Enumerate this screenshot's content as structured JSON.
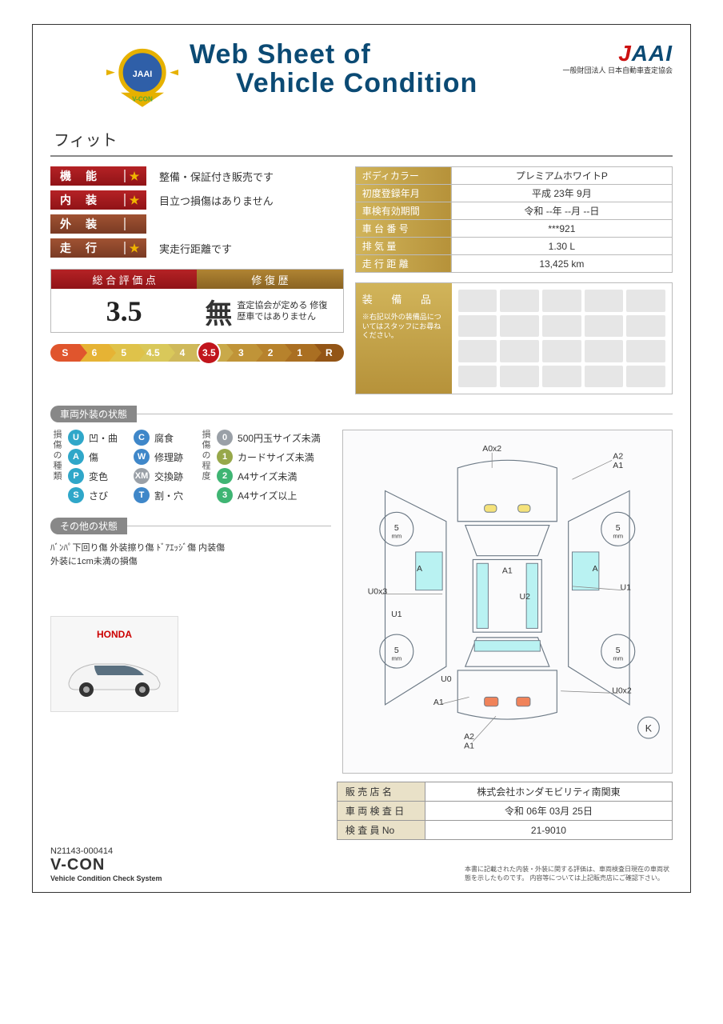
{
  "header": {
    "title_line1": "Web Sheet of",
    "title_line2": "Vehicle Condition",
    "badge_text": "V-CON",
    "jaai_logo": "JAAI",
    "jaai_sub": "一般財団法人 日本自動車査定協会"
  },
  "car_name": "フィット",
  "ratings": [
    {
      "label": "機能",
      "chip_color": "chip-red",
      "star": true,
      "desc": "整備・保証付き販売です"
    },
    {
      "label": "内装",
      "chip_color": "chip-red",
      "star": true,
      "desc": "目立つ損傷はありません"
    },
    {
      "label": "外装",
      "chip_color": "chip-brown",
      "star": false,
      "desc": ""
    },
    {
      "label": "走行",
      "chip_color": "chip-brown",
      "star": true,
      "desc": "実走行距離です"
    }
  ],
  "score": {
    "head_left": "総 合 評 価 点",
    "head_right": "修 復 歴",
    "value": "3.5",
    "mu": "無",
    "mu_desc": "査定協会が定める\n修復歴車ではありません"
  },
  "scale": {
    "items": [
      "S",
      "6",
      "5",
      "4.5",
      "4",
      "3.5",
      "3",
      "2",
      "1",
      "R"
    ],
    "mark_value": "3.5",
    "mark_index": 5
  },
  "spec": [
    {
      "label": "ボディカラー",
      "value": "プレミアムホワイトP"
    },
    {
      "label": "初度登録年月",
      "value": "平成 23年 9月"
    },
    {
      "label": "車検有効期間",
      "value": "令和 --年 --月 --日"
    },
    {
      "label": "車 台 番 号",
      "value": "***921"
    },
    {
      "label": "排  気  量",
      "value": "1.30 L"
    },
    {
      "label": "走 行 距 離",
      "value": "13,425 km"
    }
  ],
  "equip": {
    "title": "装 備 品",
    "note": "※右記以外の装備品についてはスタッフにお尋ねください。",
    "grid_cells": 20
  },
  "section_exterior": "車両外装の状態",
  "legend_types": {
    "heading": "損傷の種類",
    "rows": [
      {
        "code": "U",
        "color": "ball-teal",
        "label": "凹・曲"
      },
      {
        "code": "A",
        "color": "ball-teal",
        "label": "傷"
      },
      {
        "code": "P",
        "color": "ball-teal",
        "label": "変色"
      },
      {
        "code": "S",
        "color": "ball-teal",
        "label": "さび"
      }
    ]
  },
  "legend_types2": {
    "rows": [
      {
        "code": "C",
        "color": "ball-blue",
        "label": "腐食"
      },
      {
        "code": "W",
        "color": "ball-blue",
        "label": "修理跡"
      },
      {
        "code": "XM",
        "color": "ball-gray",
        "label": "交換跡"
      },
      {
        "code": "T",
        "color": "ball-blue",
        "label": "割・穴"
      }
    ]
  },
  "legend_degree": {
    "heading": "損傷の程度",
    "rows": [
      {
        "code": "0",
        "color": "ball-gray",
        "label": "500円玉サイズ未満"
      },
      {
        "code": "1",
        "color": "ball-olive",
        "label": "カードサイズ未満"
      },
      {
        "code": "2",
        "color": "ball-green",
        "label": "A4サイズ未満"
      },
      {
        "code": "3",
        "color": "ball-green",
        "label": "A4サイズ以上"
      }
    ]
  },
  "section_other": "その他の状態",
  "other_text": "ﾊﾞﾝﾊﾟ下回り傷 外装擦り傷 ﾄﾞｱｴｯｼﾞ傷 内装傷\n外装に1cm未満の損傷",
  "car_photo_brand": "HONDA",
  "diagram": {
    "annotations": [
      "A0x2",
      "A2",
      "A1",
      "5mm",
      "5mm",
      "A",
      "A1",
      "A",
      "U1",
      "U0x3",
      "U2",
      "U1",
      "5mm",
      "5mm",
      "U0",
      "A1",
      "U0x2",
      "A2",
      "A1",
      "K"
    ],
    "panel_fill": "#b9f2f2",
    "outline": "#6d7a86",
    "tail_light": "#f0835a"
  },
  "footer": {
    "rows": [
      {
        "label": "販 売 店 名",
        "value": "株式会社ホンダモビリティ南関東"
      },
      {
        "label": "車 両 検 査 日",
        "value": "令和 06年 03月 25日"
      },
      {
        "label": "検 査 員 No",
        "value": "21-9010"
      }
    ],
    "doc_no": "N21143-000414",
    "vcon": "V-CON",
    "vcon_sub": "Vehicle Condition Check System",
    "disclaimer": "本書に記載された内装・外装に関する評価は、車両検査日現在の車両状態を示したものです。\n内容等については上記販売店にご確認下さい。"
  }
}
